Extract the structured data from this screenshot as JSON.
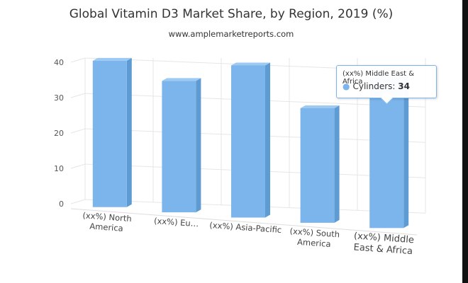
{
  "title": "Global Vitamin D3 Market Share, by Region, 2019 (%)",
  "subtitle": "www.amplemarketreports.com",
  "chart_data": {
    "type": "bar",
    "title": "Global Vitamin D3 Market Share, by Region, 2019 (%)",
    "subtitle": "www.amplemarketreports.com",
    "xlabel": "",
    "ylabel": "",
    "ylim": [
      0,
      40
    ],
    "yticks": [
      0,
      10,
      20,
      30,
      40
    ],
    "categories": [
      "(xx%) North America",
      "(xx%) Eu…",
      "(xx%) Asia-Pacific",
      "(xx%) South America",
      "(xx%) Middle East & Africa"
    ],
    "series": [
      {
        "name": "Cylinders",
        "values": [
          38,
          33,
          37,
          27,
          34
        ]
      }
    ],
    "colors": {
      "bar": "#7cb5ec",
      "bar_side": "#5f9bd3",
      "bar_top": "#9ccaf2"
    },
    "grid": true,
    "legend": "none"
  },
  "tooltip": {
    "header": "(xx%) Middle East & Africa",
    "series_label": "Cylinders: ",
    "value": "34"
  }
}
